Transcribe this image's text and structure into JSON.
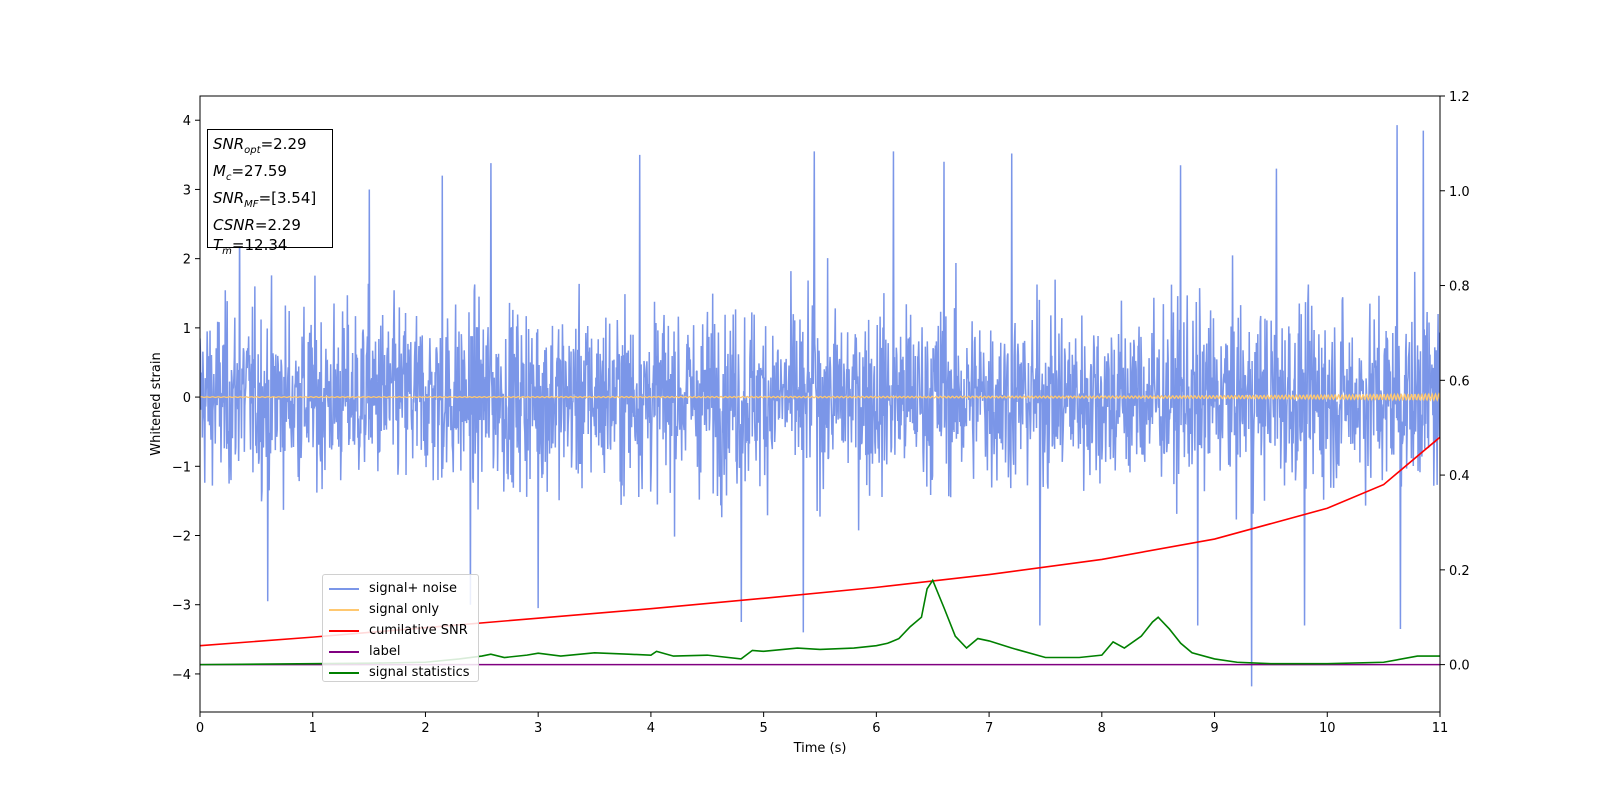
{
  "chart_data": {
    "type": "line",
    "xlabel": "Time (s)",
    "ylabel": "Whitened strain",
    "xlim": [
      0,
      11
    ],
    "ylim": [
      -4.55,
      4.35
    ],
    "y2lim": [
      -0.1,
      1.2
    ],
    "xticks": [
      "0",
      "1",
      "2",
      "3",
      "4",
      "5",
      "6",
      "7",
      "8",
      "9",
      "10",
      "11"
    ],
    "yticks": [
      "4",
      "3",
      "2",
      "1",
      "0",
      "−1",
      "−2",
      "−3",
      "−4"
    ],
    "y2ticks": [
      "1.2",
      "1.0",
      "0.8",
      "0.6",
      "0.4",
      "0.2",
      "0.0"
    ],
    "grid": false,
    "legend_position": "lower-left",
    "annotation": {
      "snr_opt": {
        "sym": "SNR",
        "sub": "opt",
        "value": "=2.29"
      },
      "mc": {
        "sym": "M",
        "sub": "c",
        "value": "=27.59"
      },
      "snr_mf": {
        "sym": "SNR",
        "sub": "MF",
        "value": "=[3.54]"
      },
      "csnr": {
        "sym": "CSNR",
        "value": "=2.29"
      },
      "tm": {
        "sym": "T",
        "sub": "m",
        "value": "=12.34"
      }
    },
    "series": [
      {
        "name": "signal+ noise",
        "color": "#7b96e8",
        "axis": "left",
        "envelope": "noise band approximately from −2.5 to 2.5 with spikes up to 3.93 and down to −4.18",
        "peaks_upper": [
          [
            0.35,
            2.75
          ],
          [
            1.5,
            3.0
          ],
          [
            2.15,
            3.2
          ],
          [
            2.58,
            3.38
          ],
          [
            3.9,
            3.5
          ],
          [
            5.45,
            3.55
          ],
          [
            6.15,
            3.55
          ],
          [
            6.6,
            3.4
          ],
          [
            7.2,
            3.52
          ],
          [
            8.7,
            3.35
          ],
          [
            9.55,
            3.3
          ],
          [
            10.62,
            3.93
          ],
          [
            10.85,
            3.85
          ]
        ],
        "peaks_lower": [
          [
            0.6,
            -2.95
          ],
          [
            2.4,
            -3.0
          ],
          [
            3.0,
            -3.05
          ],
          [
            4.8,
            -3.25
          ],
          [
            5.35,
            -3.4
          ],
          [
            7.45,
            -3.3
          ],
          [
            8.85,
            -3.3
          ],
          [
            9.33,
            -4.18
          ],
          [
            9.8,
            -3.3
          ],
          [
            10.65,
            -3.35
          ]
        ]
      },
      {
        "name": "signal only",
        "color": "#ffc870",
        "axis": "left",
        "x": [
          0,
          2,
          4,
          6,
          8,
          9,
          10,
          11
        ],
        "amplitude": [
          0.005,
          0.006,
          0.008,
          0.01,
          0.015,
          0.02,
          0.03,
          0.045
        ]
      },
      {
        "name": "cumilative SNR",
        "color": "#ff0000",
        "axis": "right",
        "x": [
          0,
          1,
          2,
          3,
          4,
          5,
          6,
          7,
          8,
          9,
          10,
          10.5,
          11
        ],
        "y": [
          0.04,
          0.058,
          0.078,
          0.098,
          0.118,
          0.14,
          0.163,
          0.19,
          0.222,
          0.265,
          0.33,
          0.38,
          0.48
        ]
      },
      {
        "name": "label",
        "color": "#800080",
        "axis": "right",
        "x": [
          0,
          11
        ],
        "y": [
          0.0,
          0.0
        ]
      },
      {
        "name": "signal statistics",
        "color": "#008000",
        "axis": "right",
        "x": [
          0,
          1,
          1.5,
          2,
          2.3,
          2.5,
          2.58,
          2.7,
          2.9,
          3.0,
          3.2,
          3.5,
          3.8,
          4.0,
          4.05,
          4.2,
          4.5,
          4.8,
          4.9,
          5.0,
          5.3,
          5.5,
          5.8,
          6.0,
          6.1,
          6.2,
          6.3,
          6.4,
          6.45,
          6.5,
          6.6,
          6.7,
          6.8,
          6.9,
          7.0,
          7.2,
          7.5,
          7.8,
          8.0,
          8.1,
          8.2,
          8.35,
          8.45,
          8.5,
          8.6,
          8.7,
          8.8,
          9.0,
          9.2,
          9.5,
          10.0,
          10.5,
          10.8,
          11.0
        ],
        "y": [
          0.0,
          0.002,
          0.003,
          0.005,
          0.012,
          0.018,
          0.022,
          0.015,
          0.02,
          0.024,
          0.018,
          0.025,
          0.022,
          0.02,
          0.028,
          0.018,
          0.02,
          0.012,
          0.03,
          0.028,
          0.035,
          0.032,
          0.035,
          0.04,
          0.045,
          0.055,
          0.08,
          0.1,
          0.16,
          0.178,
          0.12,
          0.06,
          0.035,
          0.055,
          0.05,
          0.035,
          0.015,
          0.015,
          0.02,
          0.048,
          0.035,
          0.06,
          0.09,
          0.1,
          0.075,
          0.045,
          0.025,
          0.012,
          0.005,
          0.002,
          0.002,
          0.005,
          0.018,
          0.018
        ]
      }
    ]
  }
}
